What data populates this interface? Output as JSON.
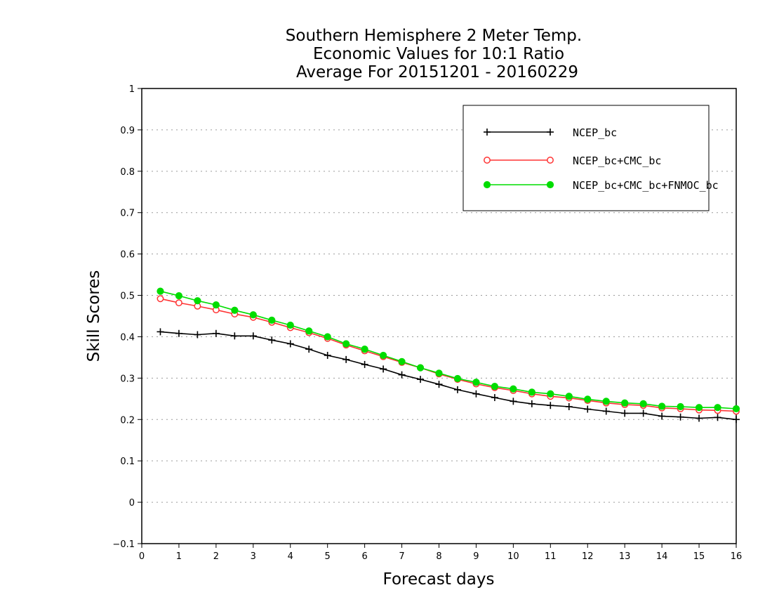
{
  "chart_data": {
    "type": "line",
    "title": [
      "Southern Hemisphere 2 Meter Temp.",
      "Economic Values for 10:1 Ratio",
      "Average For 20151201 - 20160229"
    ],
    "xlabel": "Forecast days",
    "ylabel": "Skill Scores",
    "xlim": [
      0,
      16
    ],
    "ylim": [
      -0.1,
      1
    ],
    "xticks": [
      "0",
      "1",
      "2",
      "3",
      "4",
      "5",
      "6",
      "7",
      "8",
      "9",
      "10",
      "11",
      "12",
      "13",
      "14",
      "15",
      "16"
    ],
    "yticks": [
      "−0.1",
      "0",
      "0.1",
      "0.2",
      "0.3",
      "0.4",
      "0.5",
      "0.6",
      "0.7",
      "0.8",
      "0.9",
      "1"
    ],
    "grid": true,
    "legend_position": "top-right",
    "x": [
      0.5,
      1,
      1.5,
      2,
      2.5,
      3,
      3.5,
      4,
      4.5,
      5,
      5.5,
      6,
      6.5,
      7,
      7.5,
      8,
      8.5,
      9,
      9.5,
      10,
      10.5,
      11,
      11.5,
      12,
      12.5,
      13,
      13.5,
      14,
      14.5,
      15,
      15.5,
      16
    ],
    "series": [
      {
        "name": "NCEP_bc",
        "color": "#000000",
        "marker": "plus",
        "values": [
          0.412,
          0.408,
          0.405,
          0.408,
          0.402,
          0.402,
          0.392,
          0.383,
          0.37,
          0.355,
          0.345,
          0.333,
          0.322,
          0.308,
          0.297,
          0.285,
          0.272,
          0.262,
          0.253,
          0.244,
          0.238,
          0.234,
          0.231,
          0.225,
          0.22,
          0.215,
          0.215,
          0.208,
          0.206,
          0.203,
          0.205,
          0.2
        ]
      },
      {
        "name": "NCEP_bc+CMC_bc",
        "color": "#ff3333",
        "marker": "open-circle",
        "values": [
          0.492,
          0.482,
          0.474,
          0.465,
          0.455,
          0.447,
          0.435,
          0.422,
          0.41,
          0.396,
          0.38,
          0.366,
          0.352,
          0.338,
          0.325,
          0.31,
          0.297,
          0.286,
          0.277,
          0.27,
          0.262,
          0.256,
          0.252,
          0.246,
          0.24,
          0.236,
          0.234,
          0.228,
          0.226,
          0.223,
          0.222,
          0.22
        ]
      },
      {
        "name": "NCEP_bc+CMC_bc+FNMOC_bc",
        "color": "#00dd00",
        "marker": "filled-circle",
        "values": [
          0.51,
          0.499,
          0.487,
          0.477,
          0.464,
          0.453,
          0.44,
          0.428,
          0.414,
          0.4,
          0.383,
          0.37,
          0.355,
          0.34,
          0.325,
          0.312,
          0.299,
          0.29,
          0.28,
          0.274,
          0.266,
          0.262,
          0.256,
          0.249,
          0.244,
          0.24,
          0.238,
          0.232,
          0.231,
          0.229,
          0.229,
          0.226
        ]
      }
    ]
  }
}
